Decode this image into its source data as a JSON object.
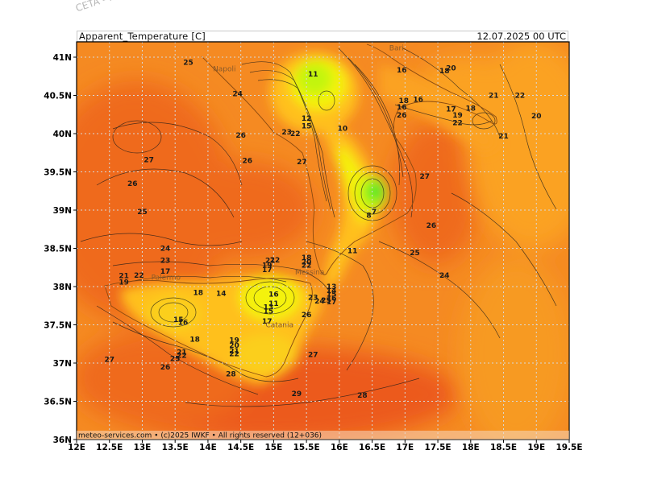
{
  "watermark": "CETA - m",
  "header": {
    "title": "Apparent_Temperature [C]",
    "datetime": "12.07.2025  00  UTC"
  },
  "footer": "meteo-services.com • (c)2025 IWKF • All rights reserved (12+036)",
  "axes": {
    "lat_labels": [
      "41N",
      "40.5N",
      "40N",
      "39.5N",
      "39N",
      "38.5N",
      "38N",
      "37.5N",
      "37N",
      "36.5N",
      "36N"
    ],
    "lon_labels": [
      "12E",
      "12.5E",
      "13E",
      "13.5E",
      "14E",
      "14.5E",
      "15E",
      "15.5E",
      "16E",
      "16.5E",
      "17E",
      "17.5E",
      "18E",
      "18.5E",
      "19E",
      "19.5E"
    ]
  },
  "cities": [
    {
      "name": "Napoli",
      "lon": 14.25,
      "lat": 40.85
    },
    {
      "name": "Bari",
      "lon": 16.87,
      "lat": 41.12
    },
    {
      "name": "Palermo",
      "lon": 13.36,
      "lat": 38.12
    },
    {
      "name": "Messina",
      "lon": 15.55,
      "lat": 38.19
    },
    {
      "name": "Catania",
      "lon": 15.09,
      "lat": 37.5
    }
  ],
  "contour_labels": [
    {
      "t": "25",
      "lon": 13.7,
      "lat": 40.93
    },
    {
      "t": "24",
      "lon": 14.45,
      "lat": 40.52
    },
    {
      "t": "26",
      "lon": 14.5,
      "lat": 39.98
    },
    {
      "t": "27",
      "lon": 13.1,
      "lat": 39.66
    },
    {
      "t": "26",
      "lon": 14.6,
      "lat": 39.65
    },
    {
      "t": "26",
      "lon": 12.85,
      "lat": 39.35
    },
    {
      "t": "25",
      "lon": 13.0,
      "lat": 38.98
    },
    {
      "t": "11",
      "lon": 15.6,
      "lat": 40.78
    },
    {
      "t": "10",
      "lon": 16.05,
      "lat": 40.07
    },
    {
      "t": "12",
      "lon": 15.5,
      "lat": 40.2
    },
    {
      "t": "15",
      "lon": 15.5,
      "lat": 40.1
    },
    {
      "t": "23",
      "lon": 15.2,
      "lat": 40.02
    },
    {
      "t": "22",
      "lon": 15.33,
      "lat": 40.0
    },
    {
      "t": "27",
      "lon": 15.43,
      "lat": 39.63
    },
    {
      "t": "16",
      "lon": 16.95,
      "lat": 40.83
    },
    {
      "t": "18",
      "lon": 17.6,
      "lat": 40.82
    },
    {
      "t": "20",
      "lon": 17.7,
      "lat": 40.86
    },
    {
      "t": "18",
      "lon": 16.98,
      "lat": 40.43
    },
    {
      "t": "16",
      "lon": 16.95,
      "lat": 40.35
    },
    {
      "t": "16",
      "lon": 17.2,
      "lat": 40.45
    },
    {
      "t": "26",
      "lon": 16.95,
      "lat": 40.24
    },
    {
      "t": "17",
      "lon": 17.7,
      "lat": 40.32
    },
    {
      "t": "18",
      "lon": 18.0,
      "lat": 40.33
    },
    {
      "t": "19",
      "lon": 17.8,
      "lat": 40.24
    },
    {
      "t": "22",
      "lon": 17.8,
      "lat": 40.14
    },
    {
      "t": "21",
      "lon": 18.35,
      "lat": 40.5
    },
    {
      "t": "22",
      "lon": 18.75,
      "lat": 40.5
    },
    {
      "t": "20",
      "lon": 19.0,
      "lat": 40.23
    },
    {
      "t": "21",
      "lon": 18.5,
      "lat": 39.97
    },
    {
      "t": "27",
      "lon": 17.3,
      "lat": 39.44
    },
    {
      "t": "8",
      "lon": 16.45,
      "lat": 38.93
    },
    {
      "t": "7",
      "lon": 16.53,
      "lat": 38.98
    },
    {
      "t": "26",
      "lon": 17.4,
      "lat": 38.8
    },
    {
      "t": "25",
      "lon": 17.15,
      "lat": 38.44
    },
    {
      "t": "11",
      "lon": 16.2,
      "lat": 38.47
    },
    {
      "t": "24",
      "lon": 17.6,
      "lat": 38.15
    },
    {
      "t": "24",
      "lon": 13.35,
      "lat": 38.5
    },
    {
      "t": "23",
      "lon": 13.35,
      "lat": 38.34
    },
    {
      "t": "17",
      "lon": 13.35,
      "lat": 38.2
    },
    {
      "t": "22",
      "lon": 12.95,
      "lat": 38.15
    },
    {
      "t": "21",
      "lon": 12.72,
      "lat": 38.14
    },
    {
      "t": "19",
      "lon": 12.72,
      "lat": 38.06
    },
    {
      "t": "18",
      "lon": 13.85,
      "lat": 37.92
    },
    {
      "t": "14",
      "lon": 14.2,
      "lat": 37.91
    },
    {
      "t": "15",
      "lon": 13.55,
      "lat": 37.57
    },
    {
      "t": "16",
      "lon": 13.62,
      "lat": 37.53
    },
    {
      "t": "18",
      "lon": 13.8,
      "lat": 37.31
    },
    {
      "t": "19",
      "lon": 14.4,
      "lat": 37.3
    },
    {
      "t": "20",
      "lon": 14.4,
      "lat": 37.23
    },
    {
      "t": "21",
      "lon": 14.4,
      "lat": 37.16
    },
    {
      "t": "22",
      "lon": 14.4,
      "lat": 37.12
    },
    {
      "t": "21",
      "lon": 13.6,
      "lat": 37.14
    },
    {
      "t": "22",
      "lon": 13.6,
      "lat": 37.1
    },
    {
      "t": "25",
      "lon": 13.5,
      "lat": 37.06
    },
    {
      "t": "26",
      "lon": 13.35,
      "lat": 36.95
    },
    {
      "t": "28",
      "lon": 14.35,
      "lat": 36.86
    },
    {
      "t": "27",
      "lon": 12.5,
      "lat": 37.05
    },
    {
      "t": "27",
      "lon": 15.6,
      "lat": 37.11
    },
    {
      "t": "29",
      "lon": 15.35,
      "lat": 36.6
    },
    {
      "t": "28",
      "lon": 16.35,
      "lat": 36.58
    },
    {
      "t": "26",
      "lon": 15.5,
      "lat": 37.63
    },
    {
      "t": "17",
      "lon": 14.9,
      "lat": 37.55
    },
    {
      "t": "11",
      "lon": 15.0,
      "lat": 37.78
    },
    {
      "t": "13",
      "lon": 14.92,
      "lat": 37.73
    },
    {
      "t": "15",
      "lon": 14.92,
      "lat": 37.68
    },
    {
      "t": "16",
      "lon": 15.0,
      "lat": 37.9
    },
    {
      "t": "17",
      "lon": 14.9,
      "lat": 38.22
    },
    {
      "t": "19",
      "lon": 14.9,
      "lat": 38.28
    },
    {
      "t": "21",
      "lon": 14.95,
      "lat": 38.34
    },
    {
      "t": "22",
      "lon": 15.02,
      "lat": 38.35
    },
    {
      "t": "18",
      "lon": 15.5,
      "lat": 38.38
    },
    {
      "t": "20",
      "lon": 15.5,
      "lat": 38.32
    },
    {
      "t": "22",
      "lon": 15.5,
      "lat": 38.28
    },
    {
      "t": "23",
      "lon": 15.6,
      "lat": 37.86
    },
    {
      "t": "24",
      "lon": 15.7,
      "lat": 37.81
    },
    {
      "t": "25",
      "lon": 15.8,
      "lat": 37.82
    },
    {
      "t": "13",
      "lon": 15.88,
      "lat": 38.0
    },
    {
      "t": "14",
      "lon": 15.88,
      "lat": 37.95
    },
    {
      "t": "15",
      "lon": 15.88,
      "lat": 37.9
    },
    {
      "t": "16",
      "lon": 15.88,
      "lat": 37.85
    },
    {
      "t": "17",
      "lon": 15.88,
      "lat": 37.8
    }
  ],
  "colors": {
    "deep_orange": "#ef6a1d",
    "orange": "#f58a22",
    "light_orange": "#fba224",
    "amber": "#ffc01e",
    "yellow": "#f4f20a",
    "lime": "#c2f50d",
    "green": "#39e62c",
    "frame": "#000000",
    "grid": "#d8d8d8"
  }
}
